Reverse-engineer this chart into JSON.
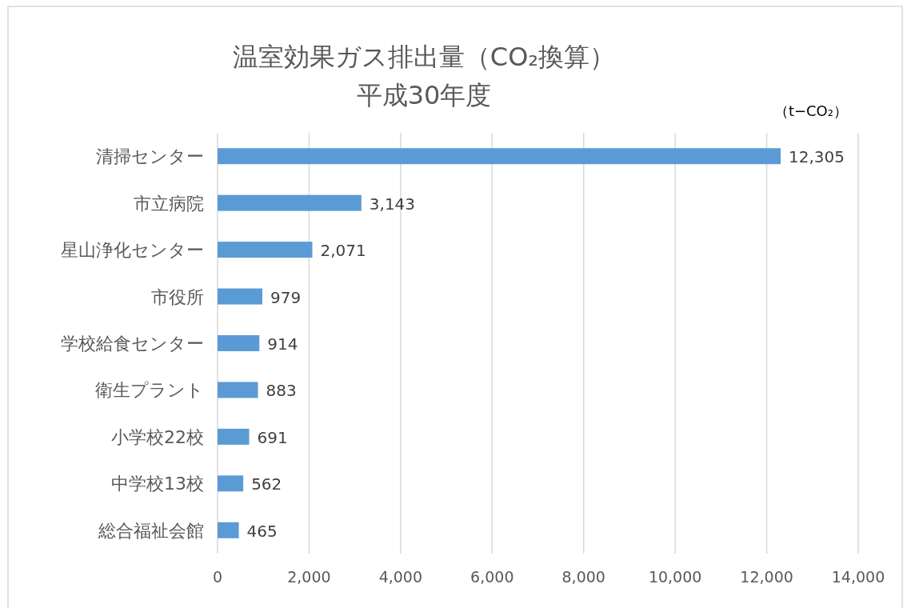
{
  "chart_data": {
    "type": "bar",
    "orientation": "horizontal",
    "title": "温室効果ガス排出量（CO₂換算）",
    "subtitle": "平成30年度",
    "annotations": [
      "（t−CO₂）"
    ],
    "categories": [
      "清掃センター",
      "市立病院",
      "星山浄化センター",
      "市役所",
      "学校給食センター",
      "衛生プラント",
      "小学校22校",
      "中学校13校",
      "総合福祉会館"
    ],
    "values": [
      12305,
      3143,
      2071,
      979,
      914,
      883,
      691,
      562,
      465
    ],
    "value_labels": [
      "12,305",
      "3,143",
      "2,071",
      "979",
      "914",
      "883",
      "691",
      "562",
      "465"
    ],
    "color": "#5b9bd5",
    "xlim": [
      0,
      14000
    ],
    "xticks": [
      0,
      {
        "value": 2000,
        "label": "2,000"
      },
      {
        "value": 4000,
        "label": "4,000"
      },
      {
        "value": 6000,
        "label": "6,000"
      },
      {
        "value": 8000,
        "label": "8,000"
      },
      {
        "value": 10000,
        "label": "10,000"
      },
      {
        "value": 12000,
        "label": "12,000"
      },
      {
        "value": 14000,
        "label": "14,000"
      }
    ],
    "grid": "x"
  }
}
